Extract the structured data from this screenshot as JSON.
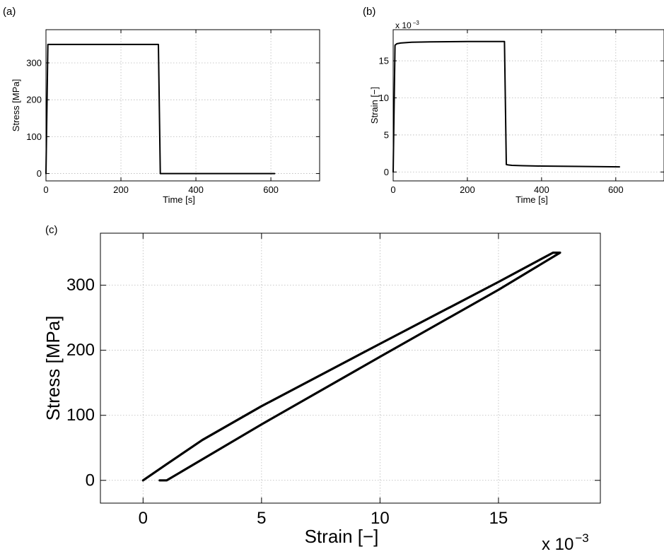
{
  "chart_data": [
    {
      "panel_label": "(a)",
      "type": "line",
      "xlabel": "Time [s]",
      "ylabel": "Stress [MPa]",
      "xlim": [
        0,
        730
      ],
      "ylim": [
        -20,
        390
      ],
      "xticks": [
        0,
        200,
        400,
        600
      ],
      "yticks": [
        0,
        100,
        200,
        300
      ],
      "xtick_labels": [
        "0",
        "200",
        "400",
        "600"
      ],
      "ytick_labels": [
        "0",
        "100",
        "200",
        "300"
      ],
      "grid": true,
      "series": [
        {
          "x": [
            0,
            5,
            300,
            305,
            610
          ],
          "y": [
            0,
            350,
            350,
            0,
            0
          ]
        }
      ]
    },
    {
      "panel_label": "(b)",
      "type": "line",
      "xlabel": "Time [s]",
      "ylabel": "Strain [−]",
      "axis_multiplier": "x 10",
      "axis_multiplier_exponent": "−3",
      "xlim": [
        0,
        730
      ],
      "ylim": [
        -1.2,
        19.2
      ],
      "xticks": [
        0,
        200,
        400,
        600
      ],
      "yticks": [
        0,
        5,
        10,
        15
      ],
      "xtick_labels": [
        "0",
        "200",
        "400",
        "600"
      ],
      "ytick_labels": [
        "0",
        "5",
        "10",
        "15"
      ],
      "grid": true,
      "series": [
        {
          "x": [
            0,
            5,
            10,
            20,
            50,
            100,
            200,
            300,
            305,
            310,
            320,
            350,
            400,
            500,
            610
          ],
          "y": [
            0,
            17.1,
            17.3,
            17.4,
            17.5,
            17.55,
            17.6,
            17.6,
            1.0,
            0.95,
            0.9,
            0.85,
            0.8,
            0.75,
            0.7
          ]
        }
      ]
    },
    {
      "panel_label": "(c)",
      "type": "line",
      "xlabel": "Strain [−]",
      "ylabel": "Stress [MPa]",
      "axis_multiplier": "x 10",
      "axis_multiplier_exponent": "−3",
      "xlim": [
        -1.8,
        19.3
      ],
      "ylim": [
        -35,
        380
      ],
      "xticks": [
        0,
        5,
        10,
        15
      ],
      "yticks": [
        0,
        100,
        200,
        300
      ],
      "xtick_labels": [
        "0",
        "5",
        "10",
        "15"
      ],
      "ytick_labels": [
        "0",
        "100",
        "200",
        "300"
      ],
      "grid": true,
      "series": [
        {
          "x": [
            0,
            1,
            2.5,
            5,
            10,
            15,
            17.3,
            17.6,
            15,
            10,
            5,
            1,
            0.7
          ],
          "y": [
            0,
            25,
            62,
            114,
            210,
            305,
            350,
            350,
            293,
            190,
            86,
            0,
            0
          ]
        }
      ]
    }
  ]
}
